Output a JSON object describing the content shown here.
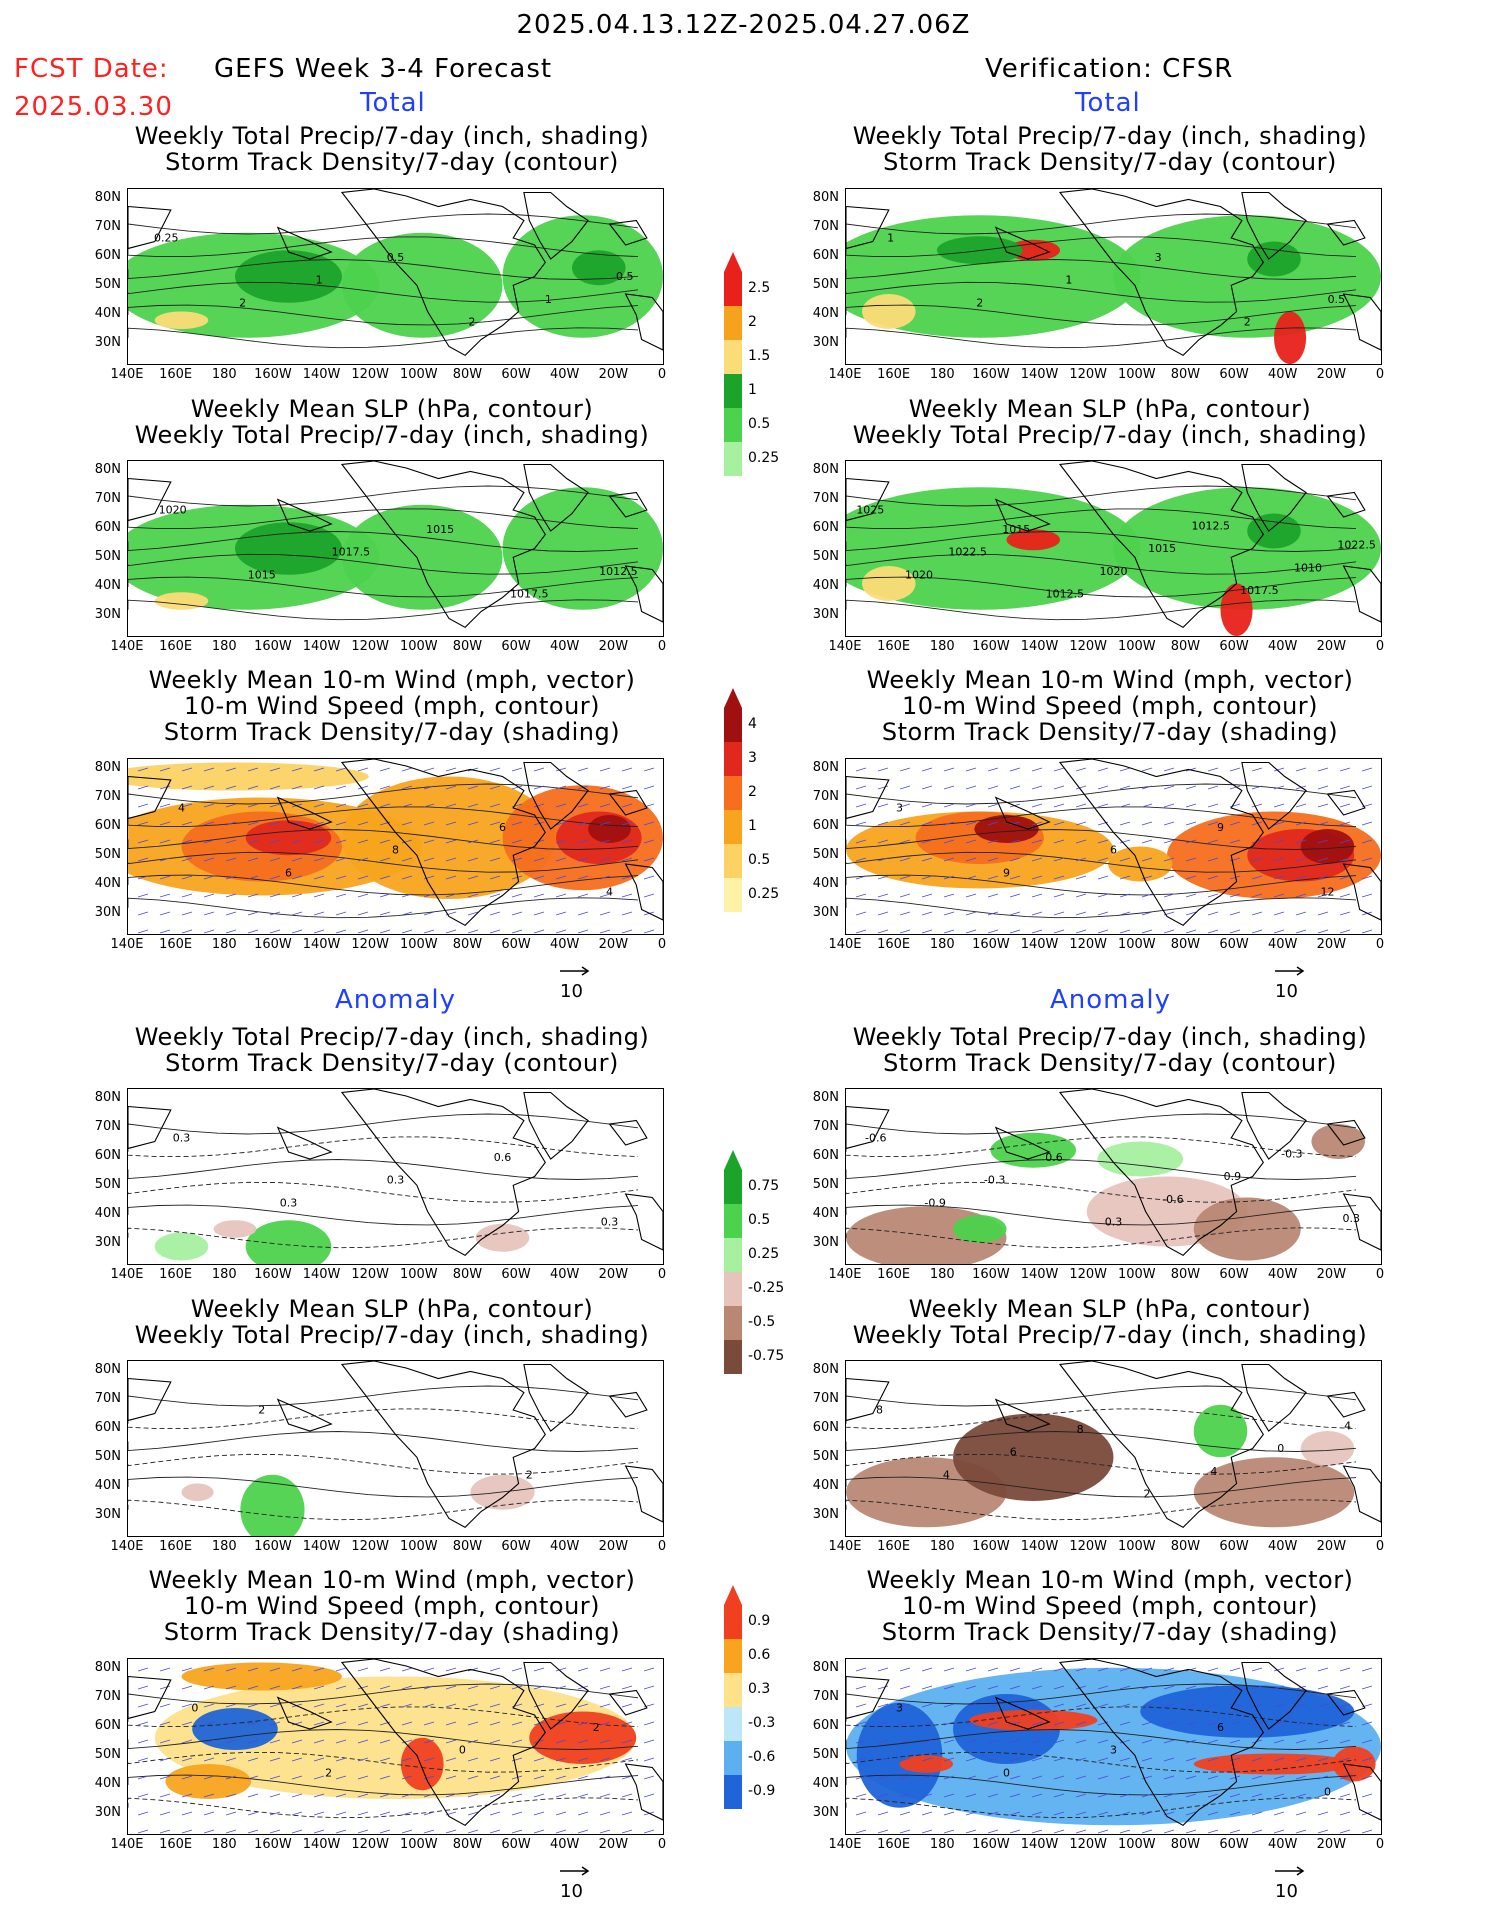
{
  "header": {
    "date_range": "2025.04.13.12Z-2025.04.27.06Z",
    "fcst_label": "FCST Date:",
    "fcst_date": "2025.03.30",
    "left_title": "GEFS Week 3-4 Forecast",
    "right_title": "Verification: CFSR",
    "total_label": "Total",
    "anomaly_label": "Anomaly"
  },
  "titles": {
    "precip_storm": [
      "Weekly Total Precip/7-day (inch, shading)",
      "Storm Track Density/7-day (contour)"
    ],
    "slp_precip": [
      "Weekly Mean SLP (hPa, contour)",
      "Weekly Total Precip/7-day (inch, shading)"
    ],
    "wind_storm": [
      "Weekly Mean 10-m Wind (mph, vector)",
      "10-m Wind Speed (mph, contour)",
      "Storm Track Density/7-day (shading)"
    ]
  },
  "axes": {
    "lat_ticks": [
      "80N",
      "70N",
      "60N",
      "50N",
      "40N",
      "30N"
    ],
    "lon_ticks": [
      "140E",
      "160E",
      "180",
      "160W",
      "140W",
      "120W",
      "100W",
      "80W",
      "60W",
      "40W",
      "20W",
      "0"
    ]
  },
  "vector_ref": "10",
  "colorbars": {
    "precip_total": {
      "labels": [
        "2.5",
        "2",
        "1.5",
        "1",
        "0.5",
        "0.25"
      ],
      "colors": [
        "#e8221a",
        "#f7a21c",
        "#fcdc78",
        "#1ca32a",
        "#4cd24c",
        "#a6f0a0"
      ]
    },
    "storm_total": {
      "labels": [
        "4",
        "3",
        "2",
        "1",
        "0.5",
        "0.25"
      ],
      "colors": [
        "#a01010",
        "#e0281c",
        "#f66e1e",
        "#f8a41e",
        "#fcd264",
        "#fdf2a8"
      ]
    },
    "precip_anom": {
      "labels": [
        "0.75",
        "0.5",
        "0.25",
        "-0.25",
        "-0.5",
        "-0.75"
      ],
      "colors": [
        "#1ca32a",
        "#4cd24c",
        "#a6f0a0",
        "#e6c4bc",
        "#b88874",
        "#7a4a3a"
      ]
    },
    "storm_anom": {
      "labels": [
        "0.9",
        "0.6",
        "0.3",
        "-0.3",
        "-0.6",
        "-0.9"
      ],
      "colors": [
        "#f04020",
        "#f8a41e",
        "#fde28a",
        "#bde7f8",
        "#5cb0f0",
        "#1f64d8"
      ]
    }
  },
  "chart_data": [
    {
      "type": "heatmap",
      "title": "GEFS Total: Weekly Total Precip / Storm Track Density",
      "contour_labels": [
        "0.25",
        "2",
        "1",
        "0.5",
        "2",
        "1",
        "0.5"
      ]
    },
    {
      "type": "heatmap",
      "title": "CFSR Total: Weekly Total Precip / Storm Track Density",
      "contour_labels": [
        "1",
        "2",
        "1",
        "3",
        "2",
        "0.5"
      ]
    },
    {
      "type": "heatmap",
      "title": "GEFS Total: Weekly Mean SLP / Weekly Total Precip",
      "contour_labels": [
        "1020",
        "1015",
        "1017.5",
        "1015",
        "1017.5",
        "1012.5"
      ]
    },
    {
      "type": "heatmap",
      "title": "CFSR Total: Weekly Mean SLP / Weekly Total Precip",
      "contour_labels": [
        "1025",
        "1020",
        "1022.5",
        "1015",
        "1012.5",
        "1020",
        "1015",
        "1012.5",
        "1017.5",
        "1010",
        "1022.5"
      ]
    },
    {
      "type": "heatmap",
      "title": "GEFS Total: 10-m Wind / Storm Track Density",
      "contour_labels": [
        "4",
        "6",
        "8",
        "6",
        "4"
      ]
    },
    {
      "type": "heatmap",
      "title": "CFSR Total: 10-m Wind / Storm Track Density",
      "contour_labels": [
        "3",
        "9",
        "6",
        "9",
        "12"
      ]
    },
    {
      "type": "heatmap",
      "title": "GEFS Anomaly: Weekly Total Precip / Storm Track Density",
      "contour_labels": [
        "0.3",
        "0.3",
        "0.3",
        "0.6",
        "0.3"
      ]
    },
    {
      "type": "heatmap",
      "title": "CFSR Anomaly: Weekly Total Precip / Storm Track Density",
      "contour_labels": [
        "-0.6",
        "-0.9",
        "-0.3",
        "0.6",
        "0.3",
        "-0.6",
        "0.9",
        "-0.3",
        "0.3"
      ]
    },
    {
      "type": "heatmap",
      "title": "GEFS Anomaly: Weekly Mean SLP / Weekly Total Precip",
      "contour_labels": [
        "2",
        "2"
      ]
    },
    {
      "type": "heatmap",
      "title": "CFSR Anomaly: Weekly Mean SLP / Weekly Total Precip",
      "contour_labels": [
        "8",
        "4",
        "6",
        "8",
        "2",
        "4",
        "0",
        "4"
      ]
    },
    {
      "type": "heatmap",
      "title": "GEFS Anomaly: 10-m Wind / Storm Track Density",
      "contour_labels": [
        "0",
        "2",
        "0",
        "2"
      ]
    },
    {
      "type": "heatmap",
      "title": "CFSR Anomaly: 10-m Wind / Storm Track Density",
      "contour_labels": [
        "3",
        "0",
        "3",
        "6",
        "0"
      ]
    }
  ]
}
